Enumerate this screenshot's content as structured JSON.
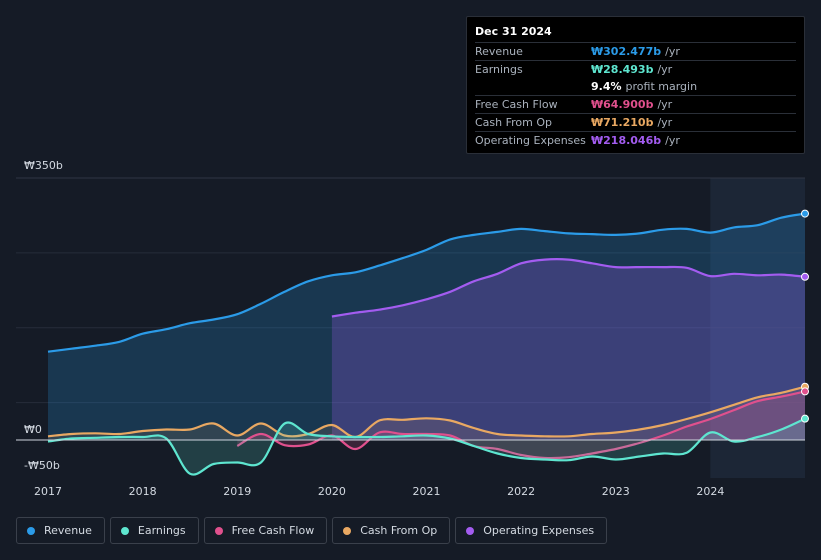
{
  "tooltip": {
    "date": "Dec 31 2024",
    "rows": [
      {
        "label": "Revenue",
        "value": "₩302.477b",
        "unit": "/yr",
        "color": "#2b9be8"
      },
      {
        "label": "Earnings",
        "value": "₩28.493b",
        "unit": "/yr",
        "color": "#5ee6d0"
      },
      {
        "label": "",
        "value": "9.4%",
        "unit": "profit margin",
        "color": "#ffffff"
      },
      {
        "label": "Free Cash Flow",
        "value": "₩64.900b",
        "unit": "/yr",
        "color": "#e0508d"
      },
      {
        "label": "Cash From Op",
        "value": "₩71.210b",
        "unit": "/yr",
        "color": "#e9a862"
      },
      {
        "label": "Operating Expenses",
        "value": "₩218.046b",
        "unit": "/yr",
        "color": "#a35cf0"
      }
    ]
  },
  "chart_data": {
    "type": "area",
    "title": "",
    "xlabel": "",
    "ylabel": "",
    "ylim": [
      -50,
      350
    ],
    "y_tick_labels": [
      "₩350b",
      "₩0",
      "-₩50b"
    ],
    "x_tick_labels": [
      "2017",
      "2018",
      "2019",
      "2020",
      "2021",
      "2022",
      "2023",
      "2024"
    ],
    "x_ticks": [
      2017,
      2018,
      2019,
      2020,
      2021,
      2022,
      2023,
      2024
    ],
    "xlim": [
      2016.7,
      2025.0
    ],
    "highlight_from": 2024.0,
    "series": [
      {
        "name": "Revenue",
        "color": "#2b9be8",
        "fill": true,
        "x": [
          2017.0,
          2017.25,
          2017.5,
          2017.75,
          2018.0,
          2018.25,
          2018.5,
          2018.75,
          2019.0,
          2019.25,
          2019.5,
          2019.75,
          2020.0,
          2020.25,
          2020.5,
          2020.75,
          2021.0,
          2021.25,
          2021.5,
          2021.75,
          2022.0,
          2022.25,
          2022.5,
          2022.75,
          2023.0,
          2023.25,
          2023.5,
          2023.75,
          2024.0,
          2024.25,
          2024.5,
          2024.75,
          2025.0
        ],
        "y": [
          118,
          122,
          126,
          131,
          142,
          148,
          156,
          161,
          168,
          182,
          198,
          212,
          220,
          224,
          233,
          243,
          254,
          268,
          274,
          278,
          282,
          279,
          276,
          275,
          274,
          276,
          281,
          282,
          277,
          284,
          287,
          297,
          302.477
        ]
      },
      {
        "name": "Operating Expenses",
        "color": "#a35cf0",
        "fill": true,
        "x": [
          2020.0,
          2020.25,
          2020.5,
          2020.75,
          2021.0,
          2021.25,
          2021.5,
          2021.75,
          2022.0,
          2022.25,
          2022.5,
          2022.75,
          2023.0,
          2023.25,
          2023.5,
          2023.75,
          2024.0,
          2024.25,
          2024.5,
          2024.75,
          2025.0
        ],
        "y": [
          165,
          170,
          174,
          180,
          188,
          198,
          212,
          222,
          236,
          241,
          241,
          236,
          231,
          231,
          231,
          230,
          219,
          222,
          220,
          221,
          218.046
        ]
      },
      {
        "name": "Cash From Op",
        "color": "#e9a862",
        "fill": true,
        "x": [
          2017.0,
          2017.25,
          2017.5,
          2017.75,
          2018.0,
          2018.25,
          2018.5,
          2018.75,
          2019.0,
          2019.25,
          2019.5,
          2019.75,
          2020.0,
          2020.25,
          2020.5,
          2020.75,
          2021.0,
          2021.25,
          2021.5,
          2021.75,
          2022.0,
          2022.25,
          2022.5,
          2022.75,
          2023.0,
          2023.25,
          2023.5,
          2023.75,
          2024.0,
          2024.25,
          2024.5,
          2024.75,
          2025.0
        ],
        "y": [
          5,
          8,
          9,
          8,
          12,
          14,
          14,
          22,
          6,
          22,
          6,
          8,
          20,
          4,
          26,
          27,
          29,
          26,
          16,
          8,
          6,
          5,
          5,
          8,
          10,
          14,
          20,
          28,
          37,
          47,
          57,
          63,
          71.21
        ]
      },
      {
        "name": "Free Cash Flow",
        "color": "#e0508d",
        "fill": true,
        "x": [
          2019.0,
          2019.25,
          2019.5,
          2019.75,
          2020.0,
          2020.25,
          2020.5,
          2020.75,
          2021.0,
          2021.25,
          2021.5,
          2021.75,
          2022.0,
          2022.25,
          2022.5,
          2022.75,
          2023.0,
          2023.25,
          2023.5,
          2023.75,
          2024.0,
          2024.25,
          2024.5,
          2024.75,
          2025.0
        ],
        "y": [
          -8,
          8,
          -7,
          -6,
          6,
          -12,
          10,
          8,
          8,
          6,
          -8,
          -12,
          -20,
          -24,
          -23,
          -18,
          -12,
          -4,
          6,
          18,
          28,
          40,
          52,
          58,
          64.9
        ]
      },
      {
        "name": "Earnings",
        "color": "#5ee6d0",
        "fill": true,
        "x": [
          2017.0,
          2017.25,
          2017.5,
          2017.75,
          2018.0,
          2018.25,
          2018.5,
          2018.75,
          2019.0,
          2019.25,
          2019.5,
          2019.75,
          2020.0,
          2020.25,
          2020.5,
          2020.75,
          2021.0,
          2021.25,
          2021.5,
          2021.75,
          2022.0,
          2022.25,
          2022.5,
          2022.75,
          2023.0,
          2023.25,
          2023.5,
          2023.75,
          2024.0,
          2024.25,
          2024.5,
          2024.75,
          2025.0
        ],
        "y": [
          -2,
          2,
          3,
          4,
          4,
          2,
          -45,
          -32,
          -30,
          -30,
          22,
          8,
          5,
          4,
          4,
          5,
          6,
          2,
          -8,
          -18,
          -24,
          -26,
          -27,
          -22,
          -26,
          -22,
          -18,
          -17,
          10,
          -2,
          4,
          14,
          28.493
        ]
      }
    ]
  },
  "legend": [
    {
      "label": "Revenue",
      "color": "#2b9be8"
    },
    {
      "label": "Earnings",
      "color": "#5ee6d0"
    },
    {
      "label": "Free Cash Flow",
      "color": "#e0508d"
    },
    {
      "label": "Cash From Op",
      "color": "#e9a862"
    },
    {
      "label": "Operating Expenses",
      "color": "#a35cf0"
    }
  ]
}
